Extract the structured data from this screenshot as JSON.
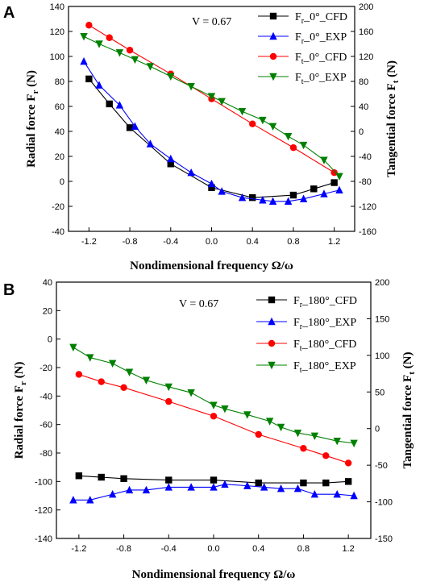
{
  "chart_data": [
    {
      "type": "line",
      "panel": "A",
      "annotation": "V = 0.67",
      "xlabel": "Nondimensional frequency  Ω/ω",
      "ylabel": "Radial force F",
      "ylabel_sub": "r",
      "ylabel_unit": " (N)",
      "y2label": "Tangential force F",
      "y2label_sub": "t",
      "y2label_unit": " (N)",
      "xlim": [
        -1.4,
        1.4
      ],
      "ylim": [
        -40,
        140
      ],
      "y2lim": [
        -160,
        200
      ],
      "xticks": [
        "-1.2",
        "-0.8",
        "-0.4",
        "0.0",
        "0.4",
        "0.8",
        "1.2"
      ],
      "yticks": [
        "-40",
        "-20",
        "0",
        "20",
        "40",
        "60",
        "80",
        "100",
        "120",
        "140"
      ],
      "y2ticks": [
        "-160",
        "-120",
        "-80",
        "-40",
        "0",
        "40",
        "80",
        "120",
        "160",
        "200"
      ],
      "legend_position": "top-right",
      "series": [
        {
          "name": "F",
          "sub": "r",
          "suffix": "_0°_CFD",
          "axis": "left",
          "color": "#000000",
          "marker": "square",
          "x": [
            -1.2,
            -1.0,
            -0.8,
            -0.4,
            0.0,
            0.4,
            0.8,
            1.0,
            1.2
          ],
          "y": [
            82,
            62,
            43,
            14,
            -5,
            -13,
            -11,
            -6,
            -1
          ]
        },
        {
          "name": "F",
          "sub": "r",
          "suffix": "_0°_EXP",
          "axis": "left",
          "color": "#0000ff",
          "marker": "triangle-up",
          "x": [
            -1.25,
            -1.1,
            -0.9,
            -0.75,
            -0.6,
            -0.4,
            -0.2,
            0.0,
            0.1,
            0.3,
            0.5,
            0.6,
            0.75,
            0.9,
            1.1,
            1.25
          ],
          "y": [
            96,
            77,
            61,
            44,
            30,
            18,
            7,
            -2,
            -8,
            -13,
            -15,
            -16,
            -16,
            -14,
            -10,
            -7
          ]
        },
        {
          "name": "F",
          "sub": "t",
          "suffix": "_0°_CFD",
          "axis": "right",
          "color": "#ff0000",
          "marker": "circle",
          "x": [
            -1.2,
            -1.0,
            -0.8,
            -0.4,
            0.0,
            0.4,
            0.8,
            1.2
          ],
          "y": [
            170,
            150,
            130,
            92,
            52,
            12,
            -26,
            -66
          ]
        },
        {
          "name": "F",
          "sub": "t",
          "suffix": "_0°_EXP",
          "axis": "right",
          "color": "#008000",
          "marker": "triangle-down",
          "x": [
            -1.25,
            -1.1,
            -0.9,
            -0.75,
            -0.6,
            -0.4,
            -0.2,
            0.0,
            0.1,
            0.3,
            0.5,
            0.6,
            0.75,
            0.9,
            1.1,
            1.25
          ],
          "y": [
            152,
            140,
            126,
            115,
            104,
            88,
            72,
            56,
            48,
            32,
            18,
            8,
            -8,
            -22,
            -46,
            -72
          ]
        }
      ]
    },
    {
      "type": "line",
      "panel": "B",
      "annotation": "V = 0.67",
      "xlabel": "Nondimensional frequency  Ω/ω",
      "ylabel": "Radial force F",
      "ylabel_sub": "r",
      "ylabel_unit": " (N)",
      "y2label": "Tangential force F",
      "y2label_sub": "t",
      "y2label_unit": " (N)",
      "xlim": [
        -1.4,
        1.4
      ],
      "ylim": [
        -140,
        40
      ],
      "y2lim": [
        -150,
        200
      ],
      "xticks": [
        "-1.2",
        "-0.8",
        "-0.4",
        "0.0",
        "0.4",
        "0.8",
        "1.2"
      ],
      "yticks": [
        "-140",
        "-120",
        "-100",
        "-80",
        "-60",
        "-40",
        "-20",
        "0",
        "20",
        "40"
      ],
      "y2ticks": [
        "-150",
        "-100",
        "-50",
        "0",
        "50",
        "100",
        "150",
        "200"
      ],
      "legend_position": "top-right",
      "series": [
        {
          "name": "F",
          "sub": "r",
          "suffix": "_180°_CFD",
          "axis": "left",
          "color": "#000000",
          "marker": "square",
          "x": [
            -1.2,
            -1.0,
            -0.8,
            -0.4,
            0.0,
            0.4,
            0.8,
            1.0,
            1.2
          ],
          "y": [
            -96,
            -97,
            -98,
            -99,
            -99,
            -101,
            -101,
            -101,
            -100
          ]
        },
        {
          "name": "F",
          "sub": "r",
          "suffix": "_180°_EXP",
          "axis": "left",
          "color": "#0000ff",
          "marker": "triangle-up",
          "x": [
            -1.25,
            -1.1,
            -0.9,
            -0.75,
            -0.6,
            -0.4,
            -0.2,
            0.0,
            0.1,
            0.3,
            0.45,
            0.6,
            0.75,
            0.9,
            1.1,
            1.25
          ],
          "y": [
            -113,
            -113,
            -109,
            -106,
            -106,
            -104,
            -104,
            -104,
            -102,
            -103,
            -104,
            -105,
            -105,
            -109,
            -109,
            -110
          ]
        },
        {
          "name": "F",
          "sub": "t",
          "suffix": "_180°_CFD",
          "axis": "right",
          "color": "#ff0000",
          "marker": "circle",
          "x": [
            -1.2,
            -1.0,
            -0.8,
            -0.4,
            0.0,
            0.4,
            0.8,
            1.0,
            1.2
          ],
          "y": [
            74,
            64,
            56,
            37,
            17,
            -8,
            -27,
            -37,
            -47
          ]
        },
        {
          "name": "F",
          "sub": "t",
          "suffix": "_180°_EXP",
          "axis": "right",
          "color": "#008000",
          "marker": "triangle-down",
          "x": [
            -1.25,
            -1.1,
            -0.9,
            -0.75,
            -0.6,
            -0.4,
            -0.2,
            0.0,
            0.1,
            0.3,
            0.5,
            0.6,
            0.75,
            0.9,
            1.1,
            1.25
          ],
          "y": [
            111,
            97,
            89,
            77,
            66,
            57,
            49,
            32,
            27,
            19,
            10,
            2,
            -6,
            -10,
            -17,
            -20
          ]
        }
      ]
    }
  ]
}
